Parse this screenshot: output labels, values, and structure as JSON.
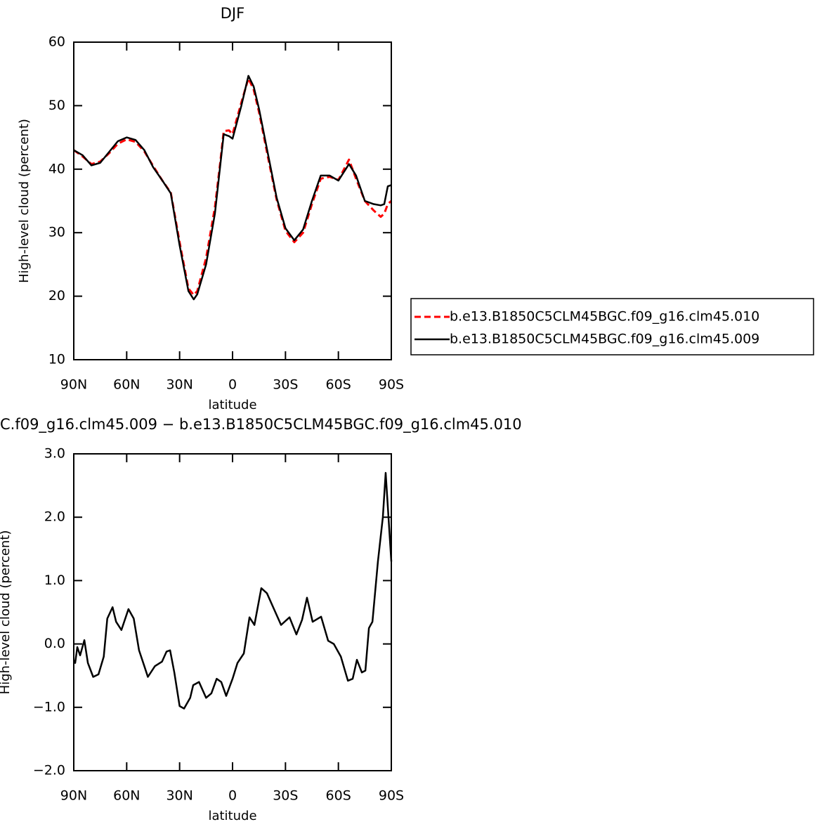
{
  "chart_data": [
    {
      "type": "line",
      "title": "DJF",
      "xlabel": "latitude",
      "ylabel": "High-level cloud (percent)",
      "x": [
        90,
        85,
        80,
        75,
        70,
        65,
        60,
        55,
        50,
        45,
        40,
        35,
        30,
        25,
        22,
        20,
        15,
        10,
        7,
        5,
        2,
        0,
        -5,
        -9,
        -12,
        -15,
        -20,
        -25,
        -30,
        -35,
        -40,
        -45,
        -50,
        -55,
        -60,
        -66,
        -70,
        -75,
        -80,
        -84,
        -86,
        -88,
        -90
      ],
      "series": [
        {
          "name": "b.e13.B1850C5CLM45BGC.f09_g16.clm45.010",
          "color": "#ff0000",
          "linestyle": "dashed",
          "values": [
            43,
            42,
            40.8,
            41.2,
            42.5,
            44,
            44.7,
            44.3,
            42.8,
            40.5,
            38.3,
            36.3,
            28.5,
            21.2,
            20.2,
            20.8,
            26,
            34,
            41,
            46,
            46.1,
            45.5,
            50.5,
            54.3,
            52.5,
            49,
            42,
            35.2,
            30.3,
            28.5,
            30,
            34.5,
            38.5,
            38.8,
            38.3,
            41.5,
            38.5,
            35,
            33.5,
            32.5,
            33,
            34.5,
            35
          ]
        },
        {
          "name": "b.e13.B1850C5CLM45BGC.f09_g16.clm45.009",
          "color": "#000000",
          "linestyle": "solid",
          "values": [
            43,
            42.2,
            40.6,
            41,
            42.7,
            44.4,
            45,
            44.6,
            43,
            40.3,
            38.3,
            36.2,
            28,
            20.8,
            19.5,
            20.3,
            25,
            33,
            40.5,
            45.5,
            45.2,
            44.8,
            50,
            54.7,
            53,
            49.5,
            42.5,
            35.5,
            30.7,
            28.8,
            30.5,
            35,
            39,
            39,
            38.2,
            40.8,
            39,
            35,
            34.5,
            34.3,
            34.5,
            37.3,
            37.5
          ]
        }
      ],
      "xlim": [
        90,
        -90
      ],
      "xticks": [
        {
          "value": 90,
          "label": "90N"
        },
        {
          "value": 60,
          "label": "60N"
        },
        {
          "value": 30,
          "label": "30N"
        },
        0,
        {
          "value": -30,
          "label": "30S"
        },
        {
          "value": -60,
          "label": "60S"
        },
        {
          "value": -90,
          "label": "90S"
        }
      ],
      "ylim": [
        10,
        60
      ],
      "yticks": [
        10,
        20,
        30,
        40,
        50,
        60
      ],
      "legend": "outside right"
    },
    {
      "type": "line",
      "title": "C.f09_g16.clm45.009 − b.e13.B1850C5CLM45BGC.f09_g16.clm45.010",
      "xlabel": "latitude",
      "ylabel": "High-level cloud (percent)",
      "x": [
        90,
        89.2,
        88,
        86.4,
        84,
        82,
        79,
        76,
        73,
        71,
        68,
        66,
        63,
        59,
        56,
        53,
        50,
        48,
        44,
        40,
        37.4,
        35.4,
        33,
        30,
        27.5,
        24,
        22.3,
        19,
        15,
        12,
        9,
        6.4,
        3.6,
        0,
        -2.8,
        -6.4,
        -9.6,
        -12.4,
        -16.3,
        -19.5,
        -23.5,
        -27.5,
        -32.3,
        -36.2,
        -39.4,
        -42.2,
        -45.4,
        -50.2,
        -54.2,
        -57.4,
        -61.4,
        -65.4,
        -68.1,
        -70.5,
        -73.3,
        -75.3,
        -77.3,
        -79.3,
        -82.4,
        -85.2,
        -86.8,
        -88.4,
        -90
      ],
      "series": [
        {
          "color": "#000000",
          "linestyle": "solid",
          "values": [
            -0.26,
            -0.3,
            -0.05,
            -0.18,
            0.06,
            -0.3,
            -0.52,
            -0.48,
            -0.2,
            0.4,
            0.58,
            0.35,
            0.22,
            0.55,
            0.4,
            -0.1,
            -0.35,
            -0.52,
            -0.35,
            -0.28,
            -0.12,
            -0.1,
            -0.45,
            -0.98,
            -1.02,
            -0.85,
            -0.65,
            -0.6,
            -0.85,
            -0.78,
            -0.55,
            -0.6,
            -0.82,
            -0.55,
            -0.3,
            -0.15,
            0.42,
            0.3,
            0.88,
            0.8,
            0.55,
            0.3,
            0.42,
            0.15,
            0.38,
            0.73,
            0.35,
            0.43,
            0.05,
            0.0,
            -0.2,
            -0.58,
            -0.55,
            -0.25,
            -0.45,
            -0.42,
            0.25,
            0.35,
            1.3,
            2.0,
            2.7,
            2.0,
            1.3
          ]
        }
      ],
      "xlim": [
        90,
        -90
      ],
      "xticks": [
        {
          "value": 90,
          "label": "90N"
        },
        {
          "value": 60,
          "label": "60N"
        },
        {
          "value": 30,
          "label": "30N"
        },
        0,
        {
          "value": -30,
          "label": "30S"
        },
        {
          "value": -60,
          "label": "60S"
        },
        {
          "value": -90,
          "label": "90S"
        }
      ],
      "ylim": [
        -2,
        3
      ],
      "yticks": [
        {
          "value": -2,
          "label": "−2.0"
        },
        {
          "value": -1,
          "label": "−1.0"
        },
        {
          "value": 0,
          "label": "0.0"
        },
        {
          "value": 1,
          "label": "1.0"
        },
        {
          "value": 2,
          "label": "2.0"
        },
        {
          "value": 3,
          "label": "3.0"
        }
      ]
    }
  ]
}
